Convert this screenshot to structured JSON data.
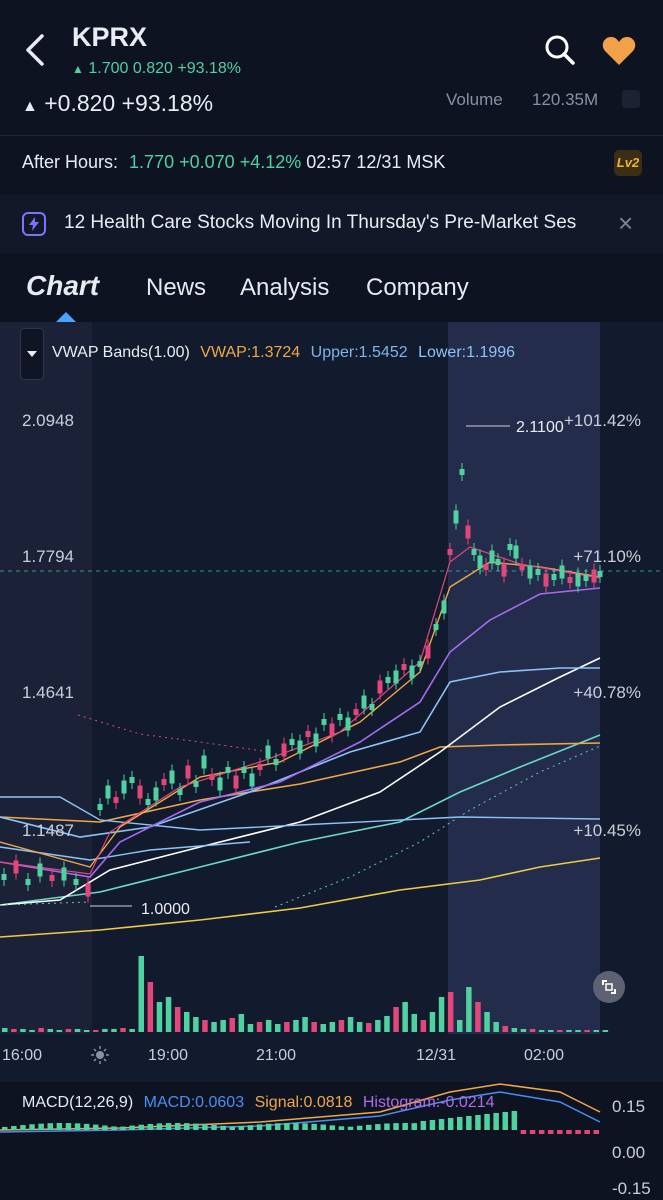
{
  "header": {
    "back_icon": "back-chevron-icon",
    "ticker": "KPRX",
    "subline_arrow": "▲",
    "subline_price": "1.700",
    "subline_change": "0.820",
    "subline_pct": "+93.18%",
    "big_arrow": "▲",
    "big_change": "+0.820",
    "big_pct": "+93.18%",
    "volume_label": "Volume",
    "volume_value": "120.35M",
    "search_icon": "search-icon",
    "favorite_icon": "heart-icon",
    "favorite_color": "#f2a04a"
  },
  "after_hours": {
    "label": "After Hours:",
    "price": "1.770",
    "change": "+0.070",
    "pct": "+4.12%",
    "time": "02:57 12/31 MSK",
    "lv2": "Lv2"
  },
  "news_banner": {
    "icon": "flash-icon",
    "text": "12 Health Care Stocks Moving In Thursday's Pre-Market Ses",
    "close": "×"
  },
  "tabs": {
    "chart": "Chart",
    "news": "News",
    "analysis": "Analysis",
    "company": "Company"
  },
  "indicator": {
    "name": "VWAP Bands(1.00)",
    "vwap": "VWAP:1.3724",
    "upper": "Upper:1.5452",
    "lower": "Lower:1.1996"
  },
  "price_axis": {
    "left": [
      "2.0948",
      "1.7794",
      "1.4641",
      "1.1487"
    ],
    "right": [
      "+101.42%",
      "+71.10%",
      "+40.78%",
      "+10.45%"
    ]
  },
  "annotations": {
    "high": "2.1100",
    "low": "1.0000"
  },
  "time_axis": [
    "16:00",
    "19:00",
    "21:00",
    "12/31",
    "02:00"
  ],
  "macd": {
    "name": "MACD(12,26,9)",
    "macd": "MACD:0.0603",
    "signal": "Signal:0.0818",
    "histogram": "Histogram:-0.0214",
    "axis": [
      "0.15",
      "0.00",
      "-0.15"
    ]
  },
  "colors": {
    "background": "#0e1322",
    "up": "#4fd1a0",
    "down": "#e2477a",
    "accent": "#4aa3ff"
  },
  "chart_data": {
    "type": "candlestick",
    "title": "",
    "ylim": [
      0.95,
      2.15
    ],
    "sessions_shaded": [
      "pre-16:00",
      "after-12/31"
    ],
    "last_price": 1.77
  }
}
